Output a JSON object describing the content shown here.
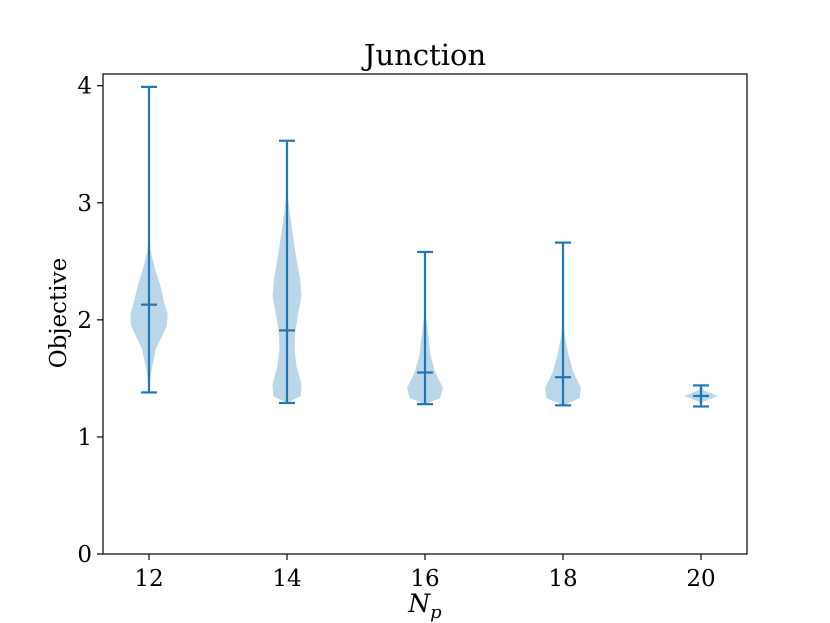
{
  "chart_data": {
    "type": "violin",
    "title": "Junction",
    "xlabel_main": "N",
    "xlabel_sub": "p",
    "ylabel": "Objective",
    "ylim": [
      0,
      4.1
    ],
    "yticks": [
      0,
      1,
      2,
      3,
      4
    ],
    "categories": [
      "12",
      "14",
      "16",
      "18",
      "20"
    ],
    "violins": [
      {
        "category": "12",
        "min": 1.38,
        "median": 2.13,
        "max": 3.99,
        "profile": [
          [
            1.38,
            0.0
          ],
          [
            1.55,
            0.03
          ],
          [
            1.75,
            0.1
          ],
          [
            1.95,
            0.26
          ],
          [
            2.05,
            0.27
          ],
          [
            2.15,
            0.22
          ],
          [
            2.3,
            0.16
          ],
          [
            2.45,
            0.08
          ],
          [
            2.6,
            0.02
          ],
          [
            2.8,
            0.0
          ],
          [
            3.99,
            0.0
          ]
        ]
      },
      {
        "category": "14",
        "min": 1.29,
        "median": 1.91,
        "max": 3.53,
        "profile": [
          [
            1.29,
            0.0
          ],
          [
            1.35,
            0.2
          ],
          [
            1.45,
            0.21
          ],
          [
            1.6,
            0.14
          ],
          [
            1.75,
            0.11
          ],
          [
            1.9,
            0.12
          ],
          [
            2.05,
            0.16
          ],
          [
            2.2,
            0.21
          ],
          [
            2.35,
            0.19
          ],
          [
            2.55,
            0.13
          ],
          [
            2.75,
            0.08
          ],
          [
            2.95,
            0.03
          ],
          [
            3.15,
            0.0
          ],
          [
            3.53,
            0.0
          ]
        ]
      },
      {
        "category": "16",
        "min": 1.28,
        "median": 1.55,
        "max": 2.58,
        "profile": [
          [
            1.28,
            0.0
          ],
          [
            1.33,
            0.22
          ],
          [
            1.42,
            0.26
          ],
          [
            1.55,
            0.15
          ],
          [
            1.7,
            0.08
          ],
          [
            1.85,
            0.05
          ],
          [
            2.0,
            0.02
          ],
          [
            2.15,
            0.0
          ],
          [
            2.58,
            0.0
          ]
        ]
      },
      {
        "category": "18",
        "min": 1.27,
        "median": 1.51,
        "max": 2.66,
        "profile": [
          [
            1.27,
            0.0
          ],
          [
            1.33,
            0.24
          ],
          [
            1.42,
            0.26
          ],
          [
            1.55,
            0.15
          ],
          [
            1.7,
            0.08
          ],
          [
            1.85,
            0.03
          ],
          [
            2.0,
            0.0
          ],
          [
            2.66,
            0.0
          ]
        ]
      },
      {
        "category": "20",
        "min": 1.26,
        "median": 1.35,
        "max": 1.44,
        "profile": [
          [
            1.26,
            0.0
          ],
          [
            1.3,
            0.03
          ],
          [
            1.35,
            0.24
          ],
          [
            1.4,
            0.04
          ],
          [
            1.44,
            0.0
          ]
        ]
      }
    ],
    "colors": {
      "fill": "#1f77b4",
      "fill_opacity": 0.3,
      "line": "#1f77b4",
      "axis": "#000000"
    },
    "grid": false,
    "legend": "none"
  }
}
